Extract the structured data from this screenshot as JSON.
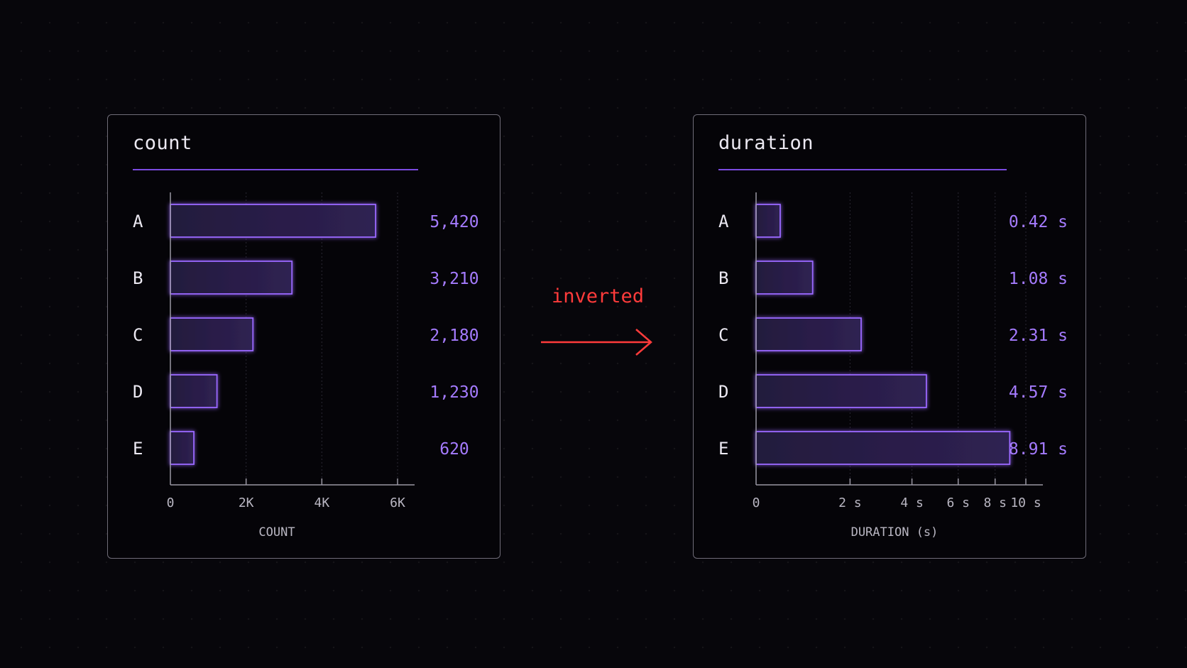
{
  "annotation": {
    "label": "inverted",
    "color": "#ff3b3b"
  },
  "colors": {
    "accent": "#7b4be0",
    "bar_stroke": "#9a68ff",
    "value_text": "#a57bff",
    "axis": "#9a97a3",
    "label_text": "#ece9f2"
  },
  "chart_data": [
    {
      "type": "bar",
      "orientation": "horizontal",
      "title": "count",
      "categories": [
        "A",
        "B",
        "C",
        "D",
        "E"
      ],
      "values": [
        5420,
        3210,
        2180,
        1230,
        620
      ],
      "value_labels": [
        "5,420",
        "3,210",
        "2,180",
        "1,230",
        "620"
      ],
      "xlabel": "COUNT",
      "xlim": [
        0,
        6000
      ],
      "ticks": [
        0,
        2000,
        4000,
        6000
      ],
      "tick_labels": [
        "0",
        "2K",
        "4K",
        "6K"
      ],
      "grid": true
    },
    {
      "type": "bar",
      "orientation": "horizontal",
      "title": "duration",
      "categories": [
        "A",
        "B",
        "C",
        "D",
        "E"
      ],
      "values": [
        0.42,
        1.08,
        2.31,
        4.57,
        8.91
      ],
      "value_labels": [
        "0.42 s",
        "1.08 s",
        "2.31 s",
        "4.57 s",
        "8.91 s"
      ],
      "xlabel": "DURATION (s)",
      "scale": "symlog",
      "xlim": [
        0,
        10
      ],
      "ticks": [
        0,
        2,
        4,
        6,
        8,
        10
      ],
      "tick_labels": [
        "0",
        "2 s",
        "4 s",
        "6 s",
        "8 s",
        "10 s"
      ],
      "grid": true
    }
  ]
}
